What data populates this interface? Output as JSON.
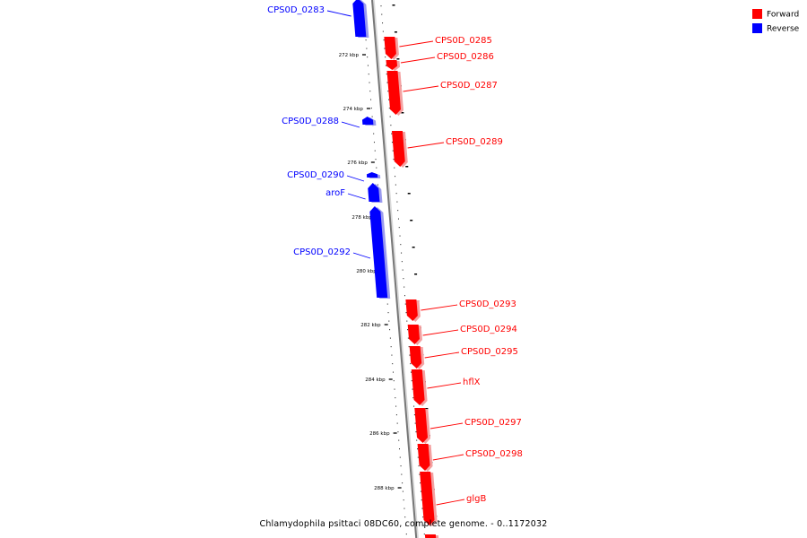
{
  "colors": {
    "forward": "#ff0000",
    "reverse": "#0000ff",
    "backbone": "#777777"
  },
  "legend": [
    {
      "label": "Forward",
      "color": "#ff0000"
    },
    {
      "label": "Reverse",
      "color": "#0000ff"
    }
  ],
  "caption": "Chlamydophila psittaci 08DC60, complete genome. - 0..1172032",
  "ticks": [
    "272 kbp",
    "274 kbp",
    "276 kbp",
    "278 kbp",
    "280 kbp",
    "282 kbp",
    "284 kbp",
    "286 kbp",
    "288 kbp"
  ],
  "genes": [
    {
      "name": "CPS0D_0283",
      "strand": "reverse"
    },
    {
      "name": "CPS0D_0285",
      "strand": "forward"
    },
    {
      "name": "CPS0D_0286",
      "strand": "forward"
    },
    {
      "name": "CPS0D_0287",
      "strand": "forward"
    },
    {
      "name": "CPS0D_0288",
      "strand": "reverse"
    },
    {
      "name": "CPS0D_0289",
      "strand": "forward"
    },
    {
      "name": "CPS0D_0290",
      "strand": "reverse"
    },
    {
      "name": "aroF",
      "strand": "reverse"
    },
    {
      "name": "CPS0D_0292",
      "strand": "reverse"
    },
    {
      "name": "CPS0D_0293",
      "strand": "forward"
    },
    {
      "name": "CPS0D_0294",
      "strand": "forward"
    },
    {
      "name": "CPS0D_0295",
      "strand": "forward"
    },
    {
      "name": "hflX",
      "strand": "forward"
    },
    {
      "name": "CPS0D_0297",
      "strand": "forward"
    },
    {
      "name": "CPS0D_0298",
      "strand": "forward"
    },
    {
      "name": "glgB",
      "strand": "forward"
    },
    {
      "name": "",
      "strand": "forward"
    }
  ]
}
